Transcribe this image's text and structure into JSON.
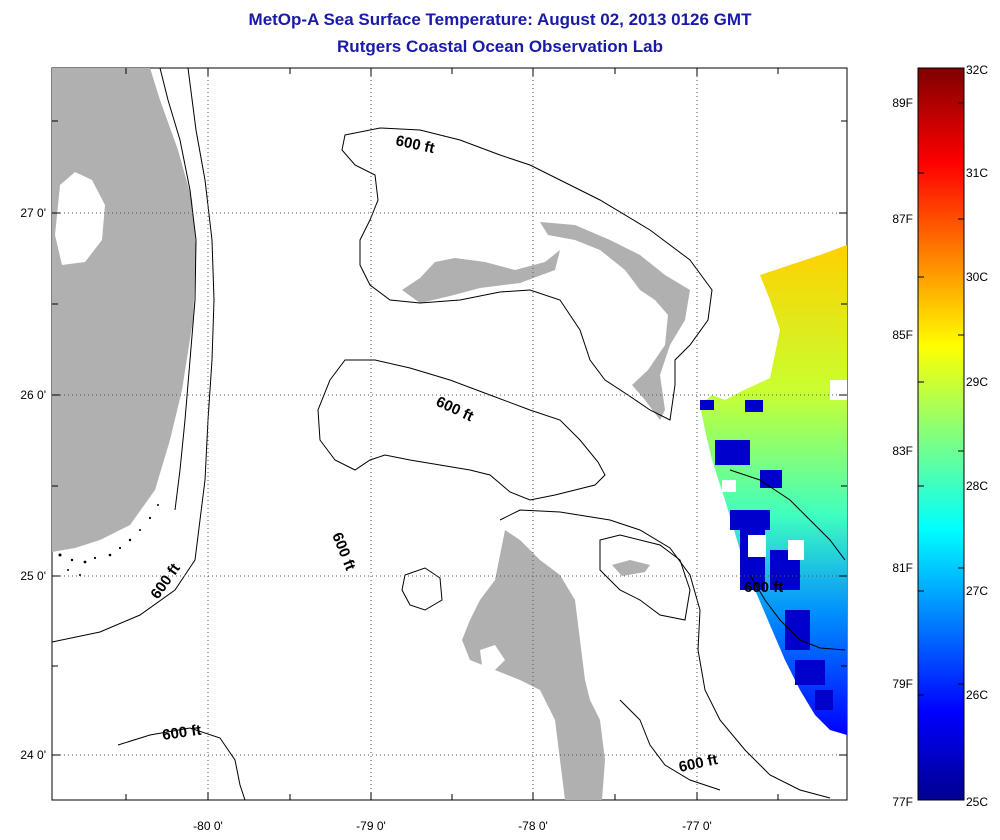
{
  "header": {
    "title": "MetOp-A Sea Surface Temperature:  August 02, 2013 0126 GMT",
    "subtitle": "Rutgers Coastal Ocean Observation Lab"
  },
  "map": {
    "lat_labels": [
      "27 0'",
      "26 0'",
      "25 0'",
      "24 0'"
    ],
    "lon_labels": [
      "-80 0'",
      "-79 0'",
      "-78 0'",
      "-77 0'"
    ],
    "contour_label": "600 ft",
    "colors": {
      "land": "#b0b0b0",
      "contour": "#000000",
      "grid": "#555555"
    }
  },
  "colorbar": {
    "celsius_labels": [
      "32C",
      "31C",
      "30C",
      "29C",
      "28C",
      "27C",
      "26C",
      "25C"
    ],
    "fahrenheit_labels": [
      "89F",
      "87F",
      "85F",
      "83F",
      "81F",
      "79F",
      "77F"
    ],
    "colormap": "jet",
    "range_c": [
      25,
      32
    ]
  }
}
